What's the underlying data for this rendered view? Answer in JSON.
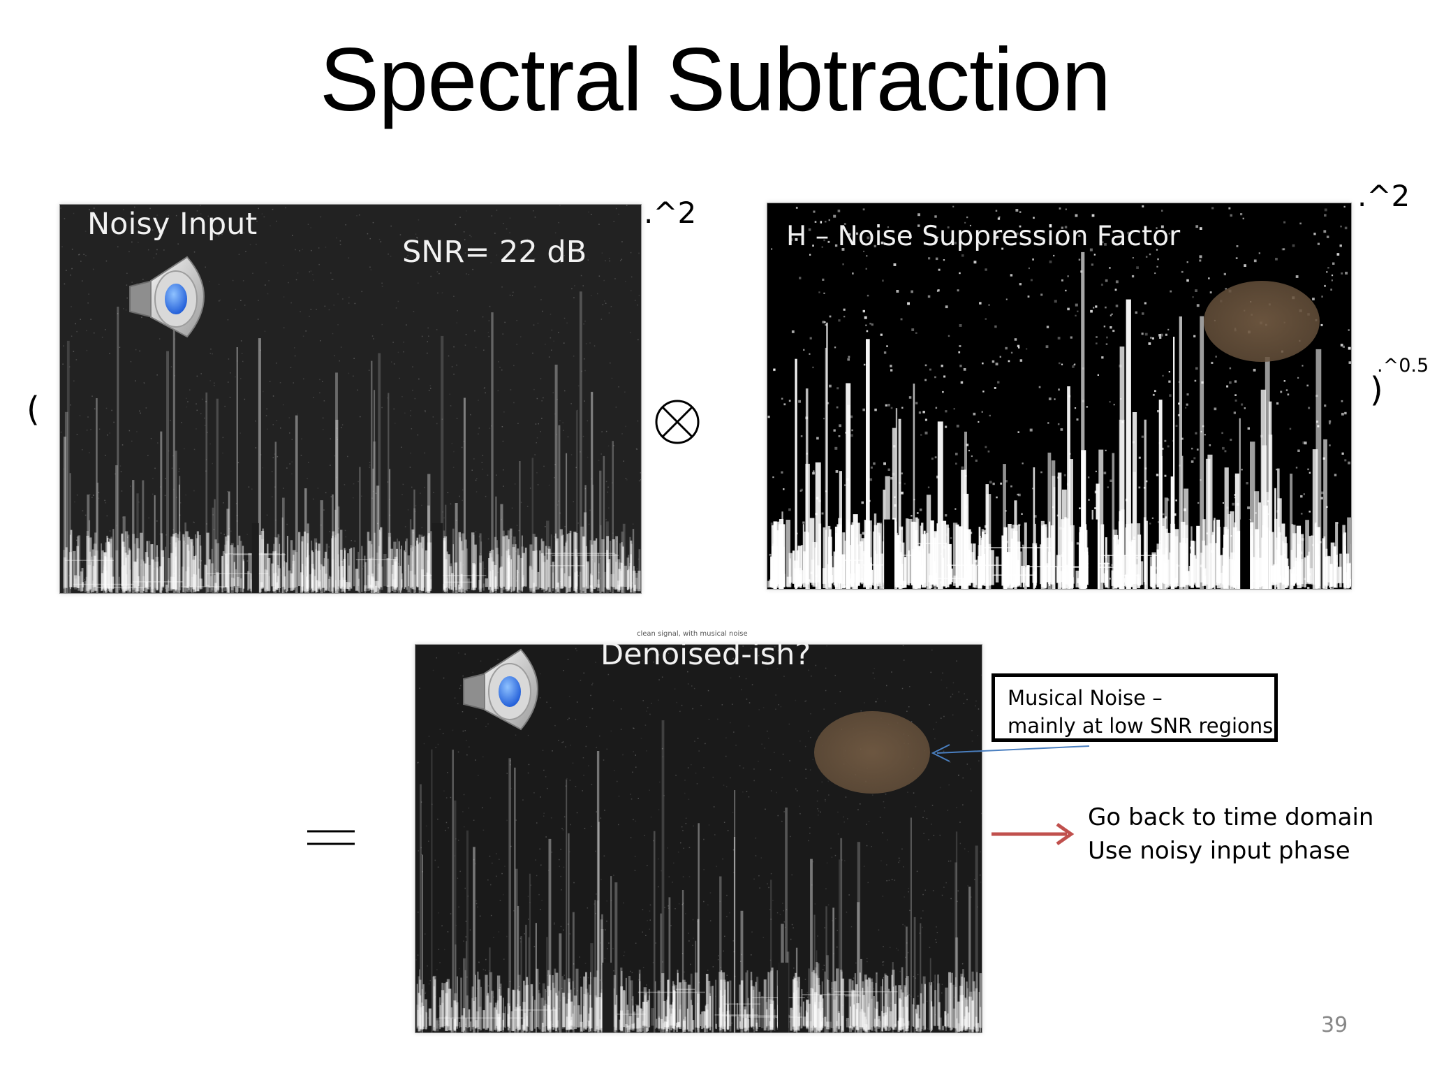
{
  "slide": {
    "title": "Spectral Subtraction",
    "page_number": "39"
  },
  "noisy_panel": {
    "label": "Noisy Input",
    "snr": "SNR= 22 dB",
    "power": ".^2"
  },
  "operators": {
    "open_paren": "(",
    "close_paren": ")",
    "multiply_icon": "circled-times-icon",
    "equals_icon": "equals-icon"
  },
  "h_panel": {
    "label": "H – Noise Suppression Factor",
    "power": ".^2",
    "outer_power": ".^0.5"
  },
  "output_panel": {
    "label": "Denoised-ish?",
    "tiny_caption": "clean signal, with musical noise"
  },
  "callout": {
    "line1": "Musical Noise –",
    "line2": " mainly at low SNR regions",
    "arrow_color": "#4a7fc0"
  },
  "next_step": {
    "line1": "Go back to time domain",
    "line2": "Use noisy input phase",
    "arrow_color": "#c0504d"
  },
  "icons": {
    "speaker": "speaker-icon"
  }
}
